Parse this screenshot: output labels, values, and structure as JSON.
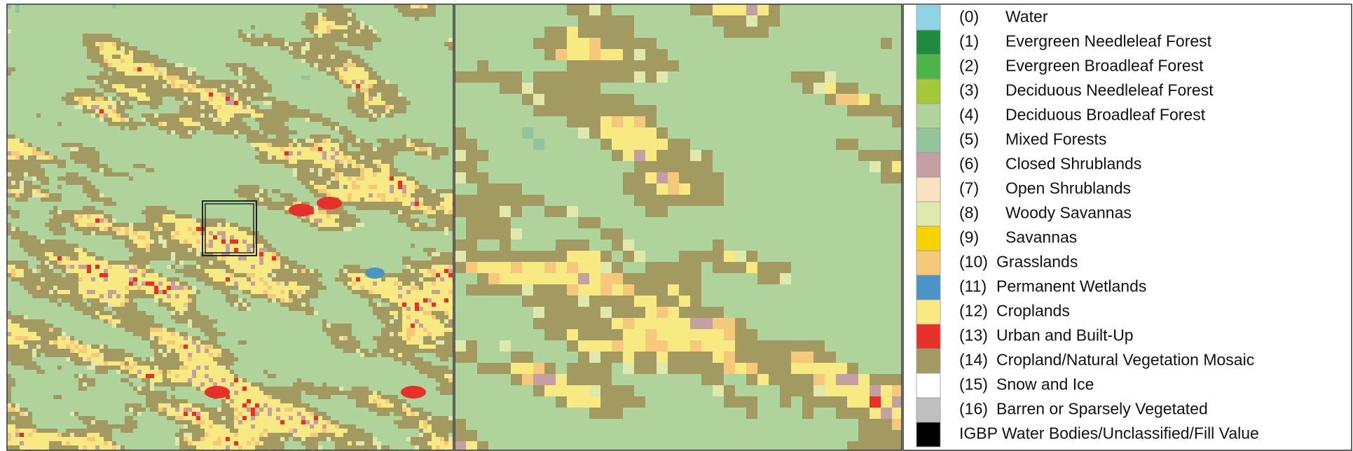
{
  "legend": {
    "items": [
      {
        "code": "(0)",
        "label": "Water",
        "color": "#8fd3e6"
      },
      {
        "code": "(1)",
        "label": "Evergreen Needleleaf Forest",
        "color": "#1e8c3c"
      },
      {
        "code": "(2)",
        "label": "Evergreen Broadleaf Forest",
        "color": "#4cb648"
      },
      {
        "code": "(3)",
        "label": "Deciduous Needleleaf Forest",
        "color": "#a3c93a"
      },
      {
        "code": "(4)",
        "label": "Deciduous Broadleaf Forest",
        "color": "#aed49c"
      },
      {
        "code": "(5)",
        "label": "Mixed Forests",
        "color": "#93c49c"
      },
      {
        "code": "(6)",
        "label": "Closed Shrublands",
        "color": "#c4a0a2"
      },
      {
        "code": "(7)",
        "label": "Open Shrublands",
        "color": "#f9e2c0"
      },
      {
        "code": "(8)",
        "label": "Woody Savannas",
        "color": "#dfe8ad"
      },
      {
        "code": "(9)",
        "label": "Savannas",
        "color": "#f5d400"
      },
      {
        "code": "(10)",
        "label": "Grasslands",
        "color": "#f5c87a"
      },
      {
        "code": "(11)",
        "label": "Permanent Wetlands",
        "color": "#4a94c8"
      },
      {
        "code": "(12)",
        "label": "Croplands",
        "color": "#f8ea82"
      },
      {
        "code": "(13)",
        "label": "Urban and Built-Up",
        "color": "#e8302a"
      },
      {
        "code": "(14)",
        "label": "Cropland/Natural Vegetation Mosaic",
        "color": "#a39a62"
      },
      {
        "code": "(15)",
        "label": "Snow and Ice",
        "color": "#ffffff"
      },
      {
        "code": "(16)",
        "label": "Barren or Sparsely Vegetated",
        "color": "#c0c0c0"
      },
      {
        "label": "IGBP Water Bodies/Unclassified/Fill Value",
        "color": "#000000"
      }
    ]
  }
}
